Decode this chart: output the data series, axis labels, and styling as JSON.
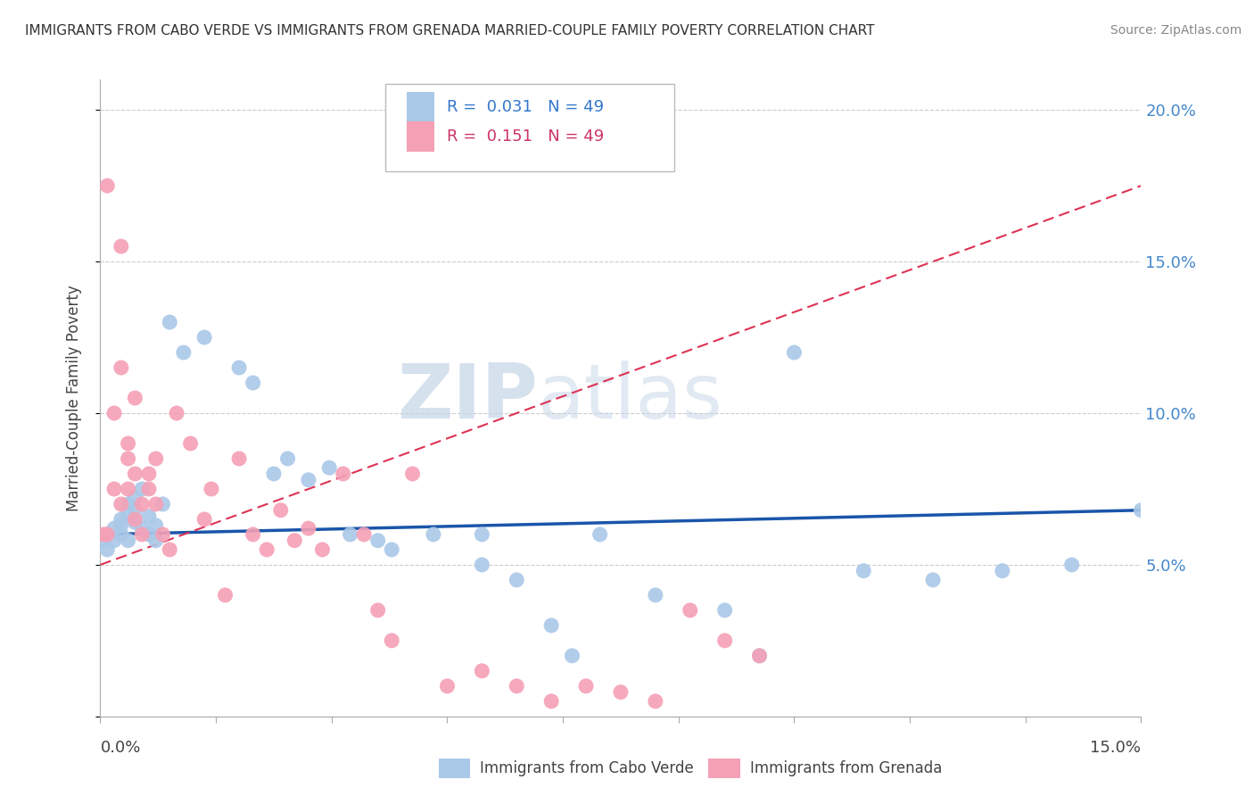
{
  "title": "IMMIGRANTS FROM CABO VERDE VS IMMIGRANTS FROM GRENADA MARRIED-COUPLE FAMILY POVERTY CORRELATION CHART",
  "source": "Source: ZipAtlas.com",
  "xlabel_bottom_left": "0.0%",
  "xlabel_bottom_right": "15.0%",
  "ylabel": "Married-Couple Family Poverty",
  "yticks": [
    0.0,
    0.05,
    0.1,
    0.15,
    0.2
  ],
  "ytick_labels": [
    "",
    "5.0%",
    "10.0%",
    "15.0%",
    "20.0%"
  ],
  "xlim": [
    0.0,
    0.15
  ],
  "ylim": [
    0.0,
    0.21
  ],
  "watermark_zip": "ZIP",
  "watermark_atlas": "atlas",
  "blue_R": "0.031",
  "blue_N": "49",
  "pink_R": "0.151",
  "pink_N": "49",
  "blue_color": "#aac8e8",
  "pink_color": "#f5a0b5",
  "blue_line_color": "#1a55aa",
  "pink_line_color": "#dd3355",
  "pink_line_dash": [
    6,
    3
  ],
  "legend_blue_label": "Immigrants from Cabo Verde",
  "legend_pink_label": "Immigrants from Grenada",
  "blue_line_x0": 0.0,
  "blue_line_y0": 0.06,
  "blue_line_x1": 0.15,
  "blue_line_y1": 0.068,
  "pink_line_x0": 0.0,
  "pink_line_y0": 0.05,
  "pink_line_x1": 0.15,
  "pink_line_y1": 0.175,
  "cabo_x": [
    0.0005,
    0.001,
    0.001,
    0.002,
    0.002,
    0.003,
    0.003,
    0.003,
    0.004,
    0.004,
    0.004,
    0.005,
    0.005,
    0.005,
    0.006,
    0.006,
    0.007,
    0.007,
    0.008,
    0.008,
    0.009,
    0.01,
    0.012,
    0.015,
    0.02,
    0.022,
    0.025,
    0.027,
    0.03,
    0.033,
    0.036,
    0.04,
    0.042,
    0.048,
    0.055,
    0.06,
    0.065,
    0.072,
    0.08,
    0.09,
    0.095,
    0.1,
    0.055,
    0.11,
    0.12,
    0.13,
    0.14,
    0.15,
    0.068
  ],
  "cabo_y": [
    0.058,
    0.06,
    0.055,
    0.062,
    0.058,
    0.065,
    0.063,
    0.06,
    0.067,
    0.07,
    0.058,
    0.072,
    0.064,
    0.068,
    0.075,
    0.062,
    0.066,
    0.06,
    0.058,
    0.063,
    0.07,
    0.13,
    0.12,
    0.125,
    0.115,
    0.11,
    0.08,
    0.085,
    0.078,
    0.082,
    0.06,
    0.058,
    0.055,
    0.06,
    0.05,
    0.045,
    0.03,
    0.06,
    0.04,
    0.035,
    0.02,
    0.12,
    0.06,
    0.048,
    0.045,
    0.048,
    0.05,
    0.068,
    0.02
  ],
  "grenada_x": [
    0.0005,
    0.001,
    0.001,
    0.002,
    0.002,
    0.003,
    0.003,
    0.003,
    0.004,
    0.004,
    0.004,
    0.005,
    0.005,
    0.005,
    0.006,
    0.006,
    0.007,
    0.007,
    0.008,
    0.008,
    0.009,
    0.01,
    0.011,
    0.013,
    0.015,
    0.016,
    0.018,
    0.02,
    0.022,
    0.024,
    0.026,
    0.028,
    0.03,
    0.032,
    0.035,
    0.038,
    0.04,
    0.042,
    0.045,
    0.05,
    0.055,
    0.06,
    0.065,
    0.07,
    0.075,
    0.08,
    0.085,
    0.09,
    0.095
  ],
  "grenada_y": [
    0.06,
    0.175,
    0.06,
    0.1,
    0.075,
    0.115,
    0.155,
    0.07,
    0.09,
    0.075,
    0.085,
    0.065,
    0.105,
    0.08,
    0.07,
    0.06,
    0.075,
    0.08,
    0.085,
    0.07,
    0.06,
    0.055,
    0.1,
    0.09,
    0.065,
    0.075,
    0.04,
    0.085,
    0.06,
    0.055,
    0.068,
    0.058,
    0.062,
    0.055,
    0.08,
    0.06,
    0.035,
    0.025,
    0.08,
    0.01,
    0.015,
    0.01,
    0.005,
    0.01,
    0.008,
    0.005,
    0.035,
    0.025,
    0.02
  ]
}
